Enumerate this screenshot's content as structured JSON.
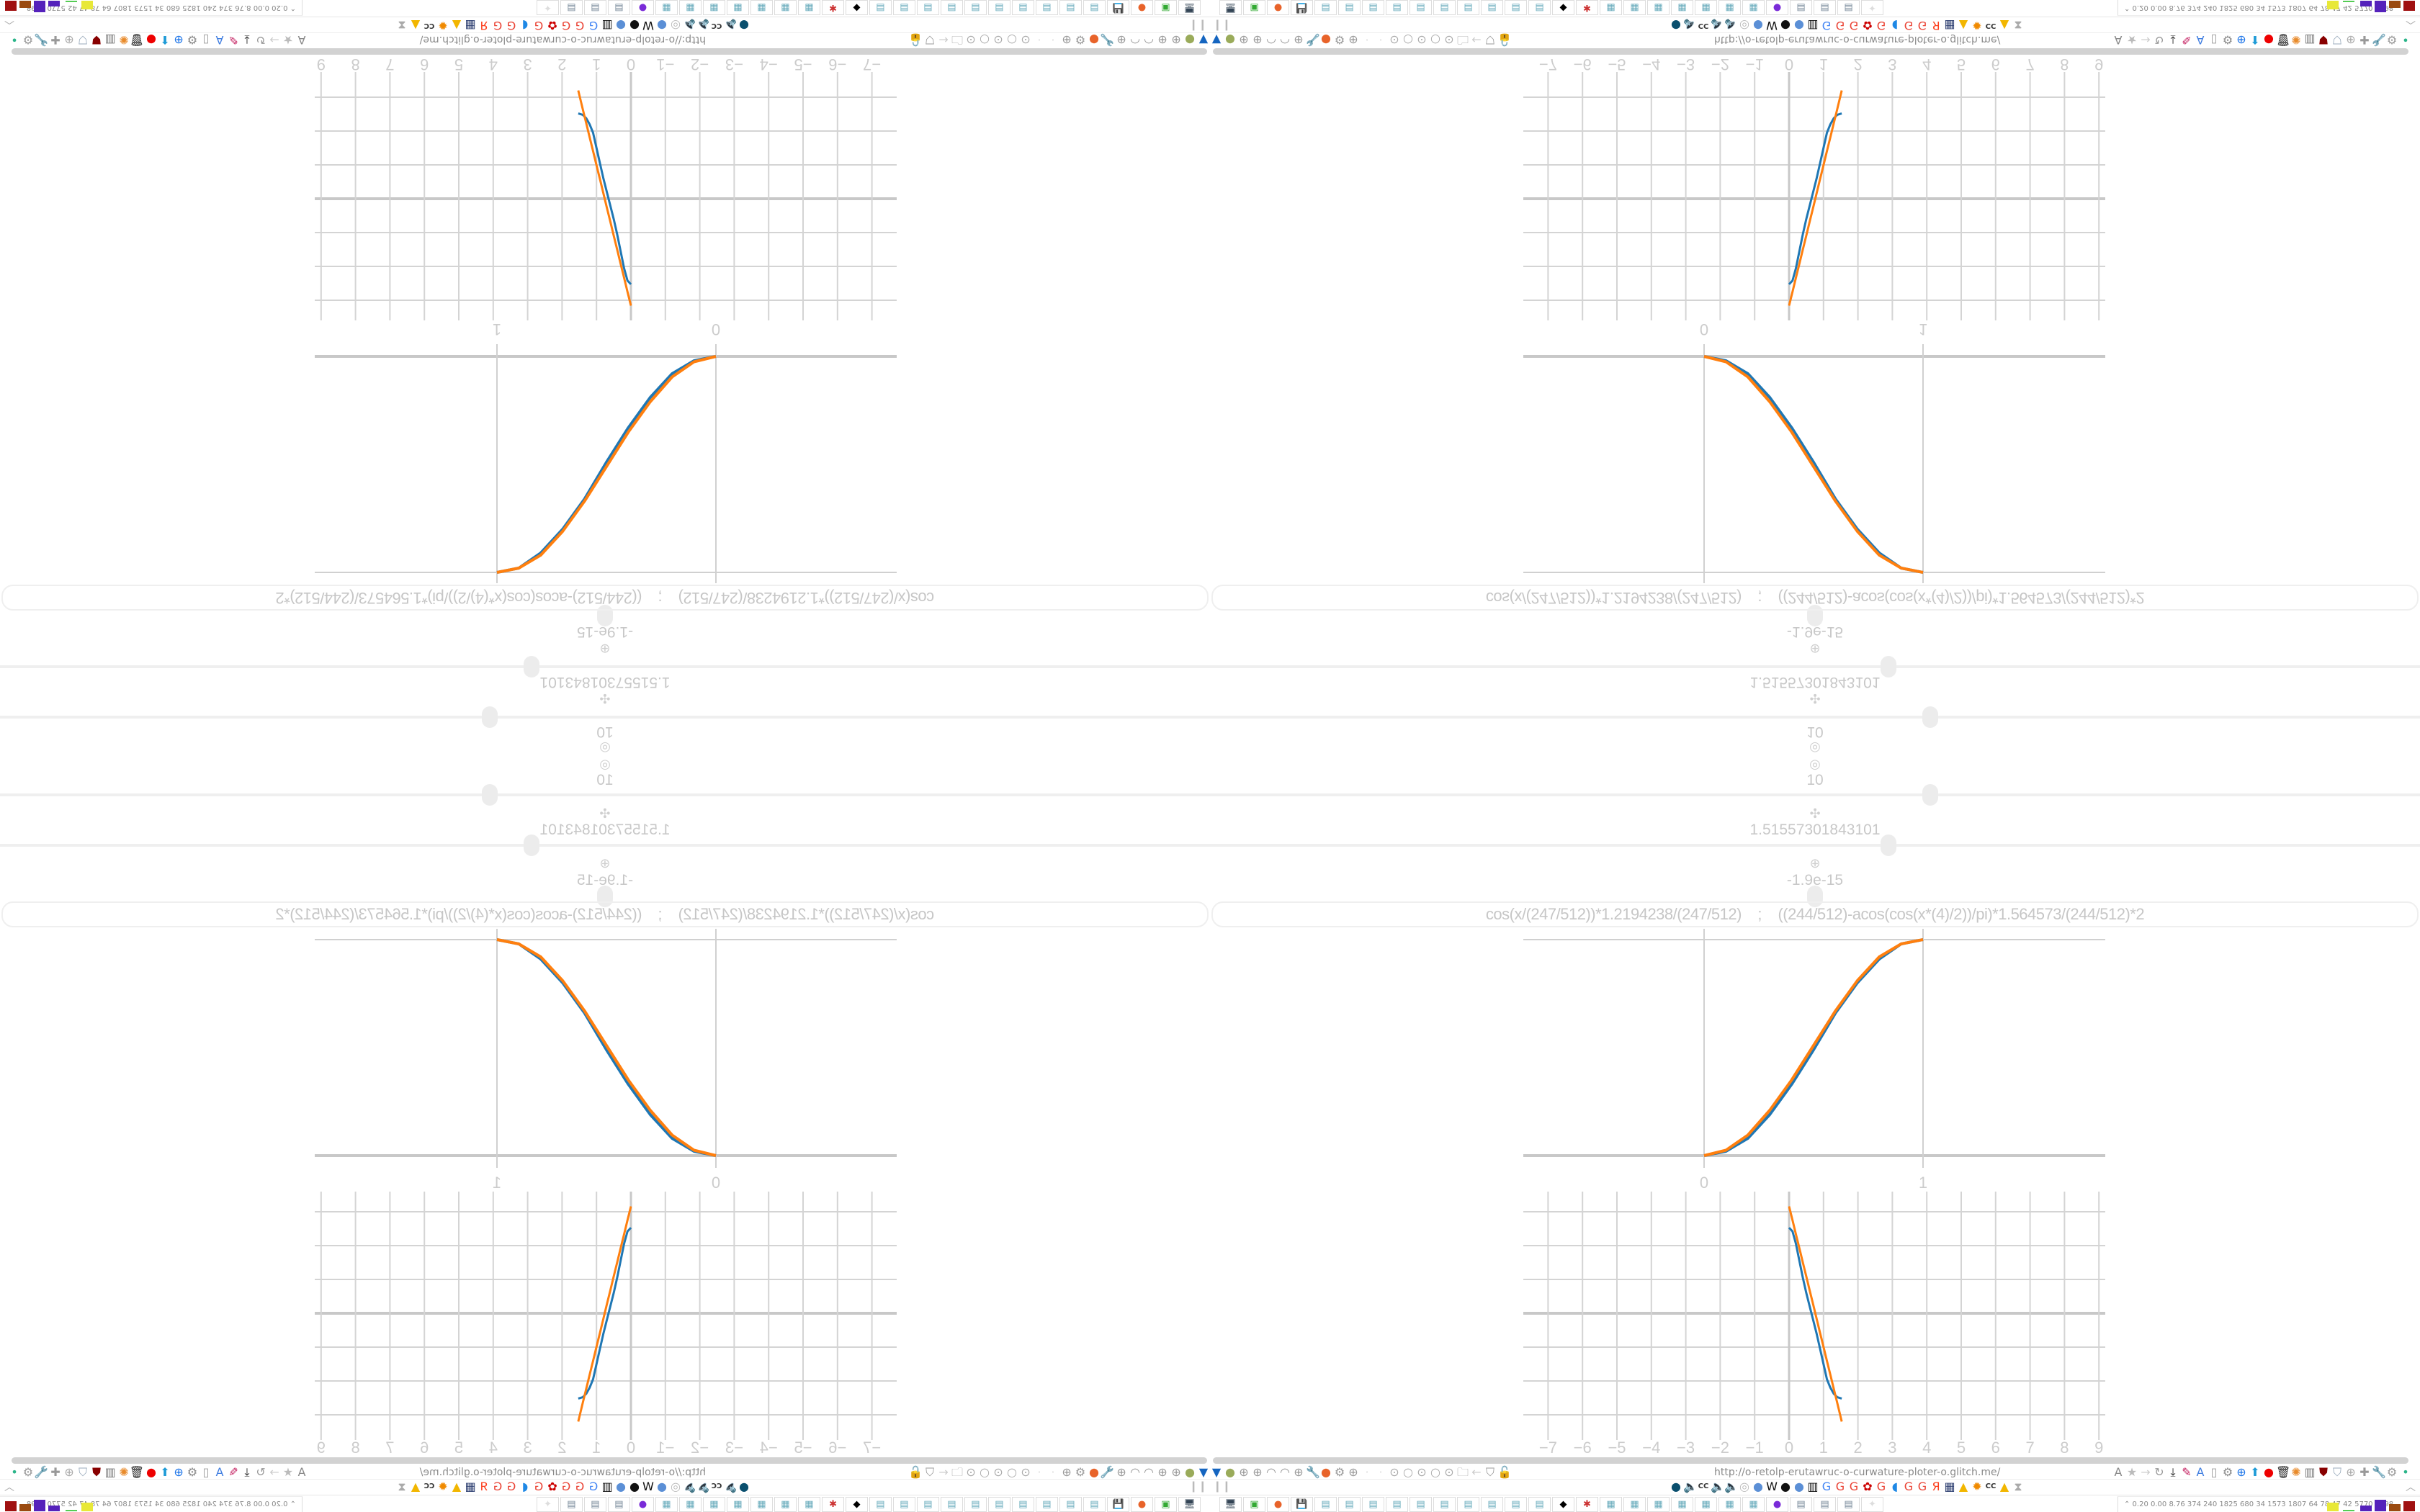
{
  "sliders": [
    {
      "icon": "target-icon",
      "glyph": "◎",
      "value": "10",
      "level_fraction": 0.595
    },
    {
      "icon": "move-icon",
      "glyph": "✣",
      "value": "1.51557301843101",
      "level_fraction": 0.561
    },
    {
      "icon": "rotate-icon",
      "glyph": "⊕",
      "value": "-1.9e-15",
      "level_fraction": 0.5
    }
  ],
  "formula": "cos(x/(247/512))*1.2194238/(247/512)    ;    ((244/512)-acos(cos(x*(4)/2))/pi)*1.564573/(244/512)*2",
  "colors": {
    "series_a": "#1f77b4",
    "series_b": "#ff7f0e",
    "grid": "#cccccc"
  },
  "chart_data": [
    {
      "type": "line",
      "x_ticks": [
        "0",
        "1"
      ],
      "xlim": [
        0,
        1
      ],
      "ylim": [
        0,
        1
      ],
      "grid": true,
      "x": [
        0,
        0.1,
        0.2,
        0.3,
        0.4,
        0.5,
        0.6,
        0.7,
        0.8,
        0.9,
        1
      ],
      "series": [
        {
          "values": [
            0,
            0.02,
            0.08,
            0.19,
            0.33,
            0.49,
            0.66,
            0.8,
            0.91,
            0.98,
            1
          ],
          "color": "#1f77b4"
        },
        {
          "values": [
            0,
            0.025,
            0.095,
            0.21,
            0.35,
            0.51,
            0.67,
            0.81,
            0.92,
            0.98,
            1
          ],
          "color": "#ff7f0e"
        }
      ]
    },
    {
      "type": "line",
      "x_ticks": [
        "−7",
        "−6",
        "−5",
        "−4",
        "−3",
        "−2",
        "−1",
        "0",
        "1",
        "2",
        "3",
        "4",
        "5",
        "6",
        "7",
        "8",
        "9"
      ],
      "xlim": [
        -7,
        9
      ],
      "ylim": [
        -3,
        3
      ],
      "grid": true,
      "x": [
        0,
        0.1,
        0.2,
        0.3,
        0.4,
        0.5,
        0.6,
        0.7,
        0.8,
        0.9,
        1.0,
        1.1,
        1.2,
        1.3,
        1.4,
        1.53
      ],
      "series": [
        {
          "values": [
            2.53,
            2.42,
            2.05,
            1.55,
            1.05,
            0.6,
            0.2,
            -0.2,
            -0.6,
            -1.05,
            -1.5,
            -1.95,
            -2.2,
            -2.38,
            -2.48,
            -2.52
          ],
          "color": "#1f77b4"
        },
        {
          "values": [
            3.16,
            2.75,
            2.33,
            1.92,
            1.5,
            1.09,
            0.67,
            0.26,
            -0.16,
            -0.58,
            -0.99,
            -1.41,
            -1.82,
            -2.24,
            -2.65,
            -3.2
          ],
          "color": "#ff7f0e"
        }
      ]
    }
  ],
  "browser": {
    "url": "http://o-retolp-erutawruc-o-curwature-ploter-o.glitch.me/",
    "toolbar_left_icons": [
      {
        "name": "filter-icon",
        "g": "▼",
        "c": "#1565c0"
      },
      {
        "name": "record-icon",
        "g": "●",
        "c": "#9aab5a"
      },
      {
        "name": "globe-icon",
        "g": "⊕",
        "c": "#999"
      },
      {
        "name": "globe-icon",
        "g": "⊕",
        "c": "#999"
      },
      {
        "name": "gauge-icon",
        "g": "◠",
        "c": "#999"
      },
      {
        "name": "gauge-icon",
        "g": "◠",
        "c": "#999"
      },
      {
        "name": "globe-icon",
        "g": "⊕",
        "c": "#999"
      },
      {
        "name": "wrench-icon",
        "g": "🔧",
        "c": "#999"
      },
      {
        "name": "firefox-icon",
        "g": "●",
        "c": "#e8632a"
      },
      {
        "name": "gear-icon",
        "g": "⚙",
        "c": "#999"
      },
      {
        "name": "globe-icon",
        "g": "⊕",
        "c": "#999"
      },
      {
        "name": "dot-icon",
        "g": "·",
        "c": "#ddd"
      },
      {
        "name": "dot-icon",
        "g": "·",
        "c": "#ddd"
      },
      {
        "name": "small-circle-icon",
        "g": "⊙",
        "c": "#aaa"
      },
      {
        "name": "circle-icon",
        "g": "○",
        "c": "#aaa"
      },
      {
        "name": "small-circle-icon",
        "g": "⊙",
        "c": "#aaa"
      },
      {
        "name": "circle-icon",
        "g": "○",
        "c": "#aaa"
      },
      {
        "name": "small-circle-icon",
        "g": "⊙",
        "c": "#aaa"
      },
      {
        "name": "folder-icon",
        "g": "🗀",
        "c": "#999"
      },
      {
        "name": "back-icon",
        "g": "←",
        "c": "#ccc"
      },
      {
        "name": "shield-icon",
        "g": "⛉",
        "c": "#999"
      },
      {
        "name": "unlock-icon",
        "g": "🔓",
        "c": "#d66"
      }
    ],
    "toolbar_right_icons": [
      {
        "name": "translate-icon",
        "g": "A",
        "c": "#888"
      },
      {
        "name": "star-icon",
        "g": "★",
        "c": "#bbb"
      },
      {
        "name": "forward-icon",
        "g": "→",
        "c": "#ccc"
      },
      {
        "name": "reload-icon",
        "g": "↻",
        "c": "#999"
      },
      {
        "name": "download-icon",
        "g": "⤓",
        "c": "#222"
      },
      {
        "name": "pencil-icon",
        "g": "✎",
        "c": "#c2185b"
      },
      {
        "name": "translate-blue-icon",
        "g": "A",
        "c": "#3f7de0"
      },
      {
        "name": "mouse-icon",
        "g": "▯",
        "c": "#999"
      },
      {
        "name": "gear-icon",
        "g": "⚙",
        "c": "#888"
      },
      {
        "name": "plus-icon",
        "g": "⊕",
        "c": "#1a73e8"
      },
      {
        "name": "upload-icon",
        "g": "⬆",
        "c": "#1e9bd7"
      },
      {
        "name": "record-red-icon",
        "g": "●",
        "c": "#e00"
      },
      {
        "name": "trash-icon",
        "g": "🗑",
        "c": "#222"
      },
      {
        "name": "share-icon",
        "g": "✺",
        "c": "#e88a2a"
      },
      {
        "name": "archive-icon",
        "g": "▥",
        "c": "#777"
      },
      {
        "name": "ublock-icon",
        "g": "⛊",
        "c": "#800"
      },
      {
        "name": "shield-icon",
        "g": "⛉",
        "c": "#9ab"
      },
      {
        "name": "globe-icon",
        "g": "⊕",
        "c": "#aaa"
      },
      {
        "name": "puzzle-icon",
        "g": "✚",
        "c": "#999"
      },
      {
        "name": "wrench-icon",
        "g": "🔧",
        "c": "#999"
      },
      {
        "name": "gear-icon",
        "g": "⚙",
        "c": "#999"
      },
      {
        "name": "status-dot-icon",
        "g": "•",
        "c": "#2bb58a"
      }
    ],
    "bookmark_icons": [
      {
        "name": "bookmark-icon",
        "g": "●",
        "c": "#0a4f6e"
      },
      {
        "name": "mute-icon",
        "g": "🔈",
        "c": "#bbb"
      },
      {
        "name": "cc-icon",
        "g": "CC",
        "c": "#333"
      },
      {
        "name": "mute-icon",
        "g": "🔈",
        "c": "#bbb"
      },
      {
        "name": "mute-icon",
        "g": "🔈",
        "c": "#bbb"
      },
      {
        "name": "mute-circle-icon",
        "g": "◎",
        "c": "#bbb"
      },
      {
        "name": "earth-icon",
        "g": "●",
        "c": "#5b8fd6"
      },
      {
        "name": "wikipedia-icon",
        "g": "W",
        "c": "#111"
      },
      {
        "name": "chart-icon",
        "g": "●",
        "c": "#111"
      },
      {
        "name": "earth-icon",
        "g": "●",
        "c": "#5b8fd6"
      },
      {
        "name": "museum-icon",
        "g": "▥",
        "c": "#111"
      },
      {
        "name": "translate-icon",
        "g": "G",
        "c": "#4285f4"
      },
      {
        "name": "google-icon",
        "g": "G",
        "c": "#ea4335"
      },
      {
        "name": "google-icon",
        "g": "G",
        "c": "#ea4335"
      },
      {
        "name": "flower-icon",
        "g": "✿",
        "c": "#c00"
      },
      {
        "name": "google-icon",
        "g": "G",
        "c": "#ea4335"
      },
      {
        "name": "edge-icon",
        "g": "◖",
        "c": "#1e88e5"
      },
      {
        "name": "google-icon",
        "g": "G",
        "c": "#ea4335"
      },
      {
        "name": "google-icon",
        "g": "G",
        "c": "#ea4335"
      },
      {
        "name": "yandex-icon",
        "g": "Я",
        "c": "#fc3f1d"
      },
      {
        "name": "grid-icon",
        "g": "▦",
        "c": "#2c3e70"
      },
      {
        "name": "image-icon",
        "g": "▲",
        "c": "#f2b600"
      },
      {
        "name": "sun-icon",
        "g": "✹",
        "c": "#f08a00"
      },
      {
        "name": "cc-icon",
        "g": "CC",
        "c": "#333"
      },
      {
        "name": "image-icon",
        "g": "▲",
        "c": "#f2b600"
      },
      {
        "name": "hourglass-icon",
        "g": "⧗",
        "c": "#aaa"
      }
    ],
    "taskbar_icons": [
      {
        "name": "monitor-icon",
        "g": "🖥",
        "c": "#345"
      },
      {
        "name": "terminal-icon",
        "g": "▣",
        "c": "#3a3"
      },
      {
        "name": "firefox-icon",
        "g": "●",
        "c": "#e8632a"
      },
      {
        "name": "floppy-icon",
        "g": "💾",
        "c": "#236"
      },
      {
        "name": "notepad-icon",
        "g": "▤",
        "c": "#6ab"
      },
      {
        "name": "notepad-icon",
        "g": "▤",
        "c": "#6ab"
      },
      {
        "name": "notepad-icon",
        "g": "▤",
        "c": "#6ab"
      },
      {
        "name": "notepad-icon",
        "g": "▤",
        "c": "#6ab"
      },
      {
        "name": "notepad-icon",
        "g": "▤",
        "c": "#6ab"
      },
      {
        "name": "notepad-icon",
        "g": "▤",
        "c": "#6ab"
      },
      {
        "name": "notepad-icon",
        "g": "▤",
        "c": "#6ab"
      },
      {
        "name": "notepad-icon",
        "g": "▤",
        "c": "#6ab"
      },
      {
        "name": "notepad-icon",
        "g": "▤",
        "c": "#6ab"
      },
      {
        "name": "notepad-icon",
        "g": "▤",
        "c": "#6ab"
      },
      {
        "name": "inkscape-icon",
        "g": "◆",
        "c": "#000"
      },
      {
        "name": "app-red-icon",
        "g": "✱",
        "c": "#c33"
      },
      {
        "name": "calculator-icon",
        "g": "▦",
        "c": "#6ab"
      },
      {
        "name": "calculator-icon",
        "g": "▦",
        "c": "#6ab"
      },
      {
        "name": "calculator-icon",
        "g": "▦",
        "c": "#6ab"
      },
      {
        "name": "calculator-icon",
        "g": "▦",
        "c": "#6ab"
      },
      {
        "name": "calculator-icon",
        "g": "▦",
        "c": "#6ab"
      },
      {
        "name": "calculator-icon",
        "g": "▦",
        "c": "#6ab"
      },
      {
        "name": "calculator-icon",
        "g": "▦",
        "c": "#6ab"
      },
      {
        "name": "chat-icon",
        "g": "●",
        "c": "#7a2bd8"
      },
      {
        "name": "document-icon",
        "g": "▤",
        "c": "#789"
      },
      {
        "name": "document-icon",
        "g": "▤",
        "c": "#789"
      },
      {
        "name": "document-icon",
        "g": "▤",
        "c": "#789"
      },
      {
        "name": "app-faded-icon",
        "g": "✦",
        "c": "#ddd"
      }
    ],
    "tray_text": "⌃  0.20 0.00 8.76  374  240 1825 680   34  1573 1807  64   78   47   42  5770 7598"
  }
}
